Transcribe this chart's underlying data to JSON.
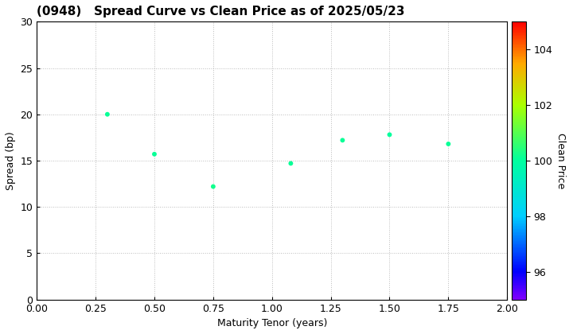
{
  "title": "(0948)   Spread Curve vs Clean Price as of 2025/05/23",
  "xlabel": "Maturity Tenor (years)",
  "ylabel": "Spread (bp)",
  "colorbar_label": "Clean Price",
  "xlim": [
    0.0,
    2.0
  ],
  "ylim": [
    0,
    30
  ],
  "xticks": [
    0.0,
    0.25,
    0.5,
    0.75,
    1.0,
    1.25,
    1.5,
    1.75,
    2.0
  ],
  "yticks": [
    0,
    5,
    10,
    15,
    20,
    25,
    30
  ],
  "colorbar_min": 95.0,
  "colorbar_max": 105.0,
  "colorbar_ticks": [
    96,
    98,
    100,
    102,
    104
  ],
  "scatter_x": [
    0.3,
    0.5,
    0.75,
    1.08,
    1.3,
    1.5,
    1.75
  ],
  "scatter_y": [
    20.0,
    15.7,
    12.2,
    14.7,
    17.2,
    17.8,
    16.8
  ],
  "scatter_colors": [
    100.1,
    100.1,
    100.2,
    100.1,
    100.1,
    100.0,
    100.1
  ],
  "marker_size": 18,
  "background_color": "#ffffff",
  "grid_color": "#bbbbbb",
  "grid_style": "dotted",
  "title_fontsize": 11,
  "axis_fontsize": 9,
  "label_fontsize": 9
}
